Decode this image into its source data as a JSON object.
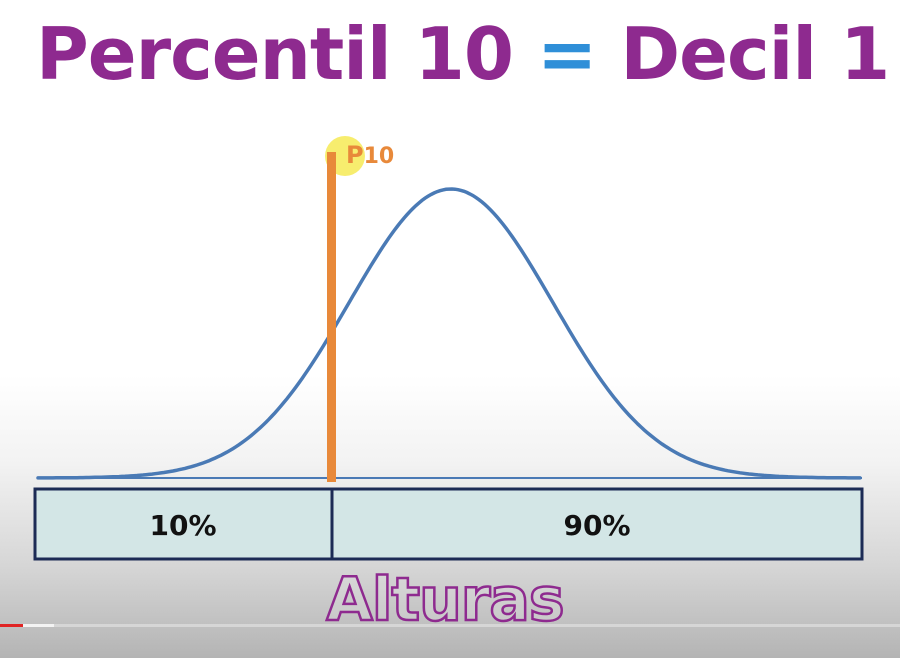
{
  "title": {
    "part1": "Percentil 10",
    "equals": "=",
    "part2": "Decil 1"
  },
  "marker": {
    "label_letter": "P",
    "label_number": "10",
    "percentile": 10
  },
  "bar": {
    "left_label": "10%",
    "right_label": "90%",
    "left_fraction": 0.1
  },
  "footer_word": "Alturas",
  "video": {
    "played_fraction": 0.025,
    "buffered_fraction": 0.06
  },
  "colors": {
    "title_purple": "#8e2a8f",
    "title_blue": "#2f8fd8",
    "curve": "#4a7ab5",
    "marker": "#e8893a",
    "highlight": "#f5e84a",
    "bar_fill": "#d3e6e6",
    "bar_border": "#1c2b55",
    "progress_played": "#e02424"
  }
}
